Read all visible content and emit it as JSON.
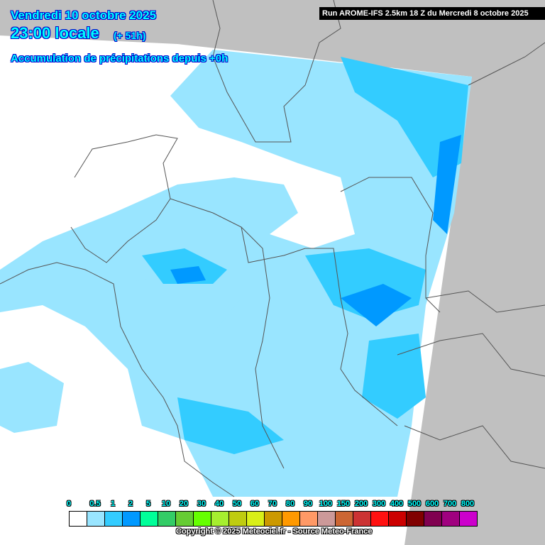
{
  "header": {
    "date": "Vendredi 10 octobre 2025",
    "time": "23:00 locale",
    "lead": "(+ 51h)",
    "parameter": "Accumulation de précipitations depuis +0h",
    "run": "Run AROME-IFS 2.5km 18 Z du Mercredi 8 octobre 2025"
  },
  "legend": {
    "labels": [
      "0",
      "0.5",
      "1",
      "2",
      "5",
      "10",
      "20",
      "30",
      "40",
      "50",
      "60",
      "70",
      "80",
      "90",
      "100",
      "150",
      "200",
      "300",
      "400",
      "500",
      "600",
      "700",
      "800"
    ],
    "colors": [
      "#ffffff",
      "#99e5ff",
      "#33ccff",
      "#0099ff",
      "#00ff99",
      "#33cc66",
      "#66cc33",
      "#66ff00",
      "#a6ef2f",
      "#bfcc10",
      "#d9ef18",
      "#cc9900",
      "#ff9900",
      "#ff9966",
      "#cc9999",
      "#cc6633",
      "#cc3333",
      "#ff1111",
      "#cc0000",
      "#800000",
      "#800050",
      "#a0007f",
      "#cc00cc"
    ]
  },
  "copyright": "Copyright © 2025 Meteociel.fr - Source Meteo-France",
  "colors": {
    "outside_domain": "#c0c0c0",
    "light_precip": "#99e5ff",
    "medium_precip": "#33ccff",
    "heavy_precip": "#0099ff",
    "borders": "#555555"
  }
}
